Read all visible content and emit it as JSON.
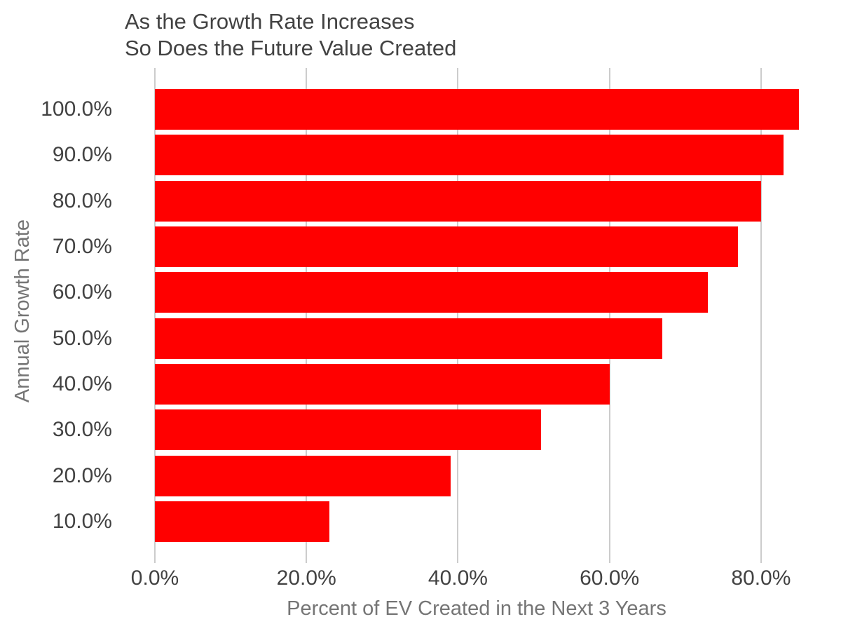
{
  "chart_data": {
    "type": "bar",
    "orientation": "horizontal",
    "title": "As the Growth Rate Increases\nSo Does the Future Value Created",
    "title_lines": [
      "As the Growth Rate Increases",
      "So Does the Future Value Created"
    ],
    "xlabel": "Percent of EV Created in the Next 3 Years",
    "ylabel": "Annual Growth Rate",
    "categories": [
      "100.0%",
      "90.0%",
      "80.0%",
      "70.0%",
      "60.0%",
      "50.0%",
      "40.0%",
      "30.0%",
      "20.0%",
      "10.0%"
    ],
    "values": [
      85,
      83,
      80,
      77,
      73,
      67,
      60,
      51,
      39,
      23
    ],
    "values_unit": "%",
    "x_ticks": [
      {
        "label": "0.0%",
        "value": 0
      },
      {
        "label": "20.0%",
        "value": 20
      },
      {
        "label": "40.0%",
        "value": 40
      },
      {
        "label": "60.0%",
        "value": 60
      },
      {
        "label": "80.0%",
        "value": 80
      }
    ],
    "xlim": [
      0,
      90
    ],
    "grid": true,
    "legend": "none",
    "colors": {
      "bar": "#ff0000",
      "gridline": "#cccccc",
      "tick_text": "#424242",
      "axis_title_text": "#757575",
      "title_text": "#424242",
      "background": "#ffffff"
    }
  }
}
